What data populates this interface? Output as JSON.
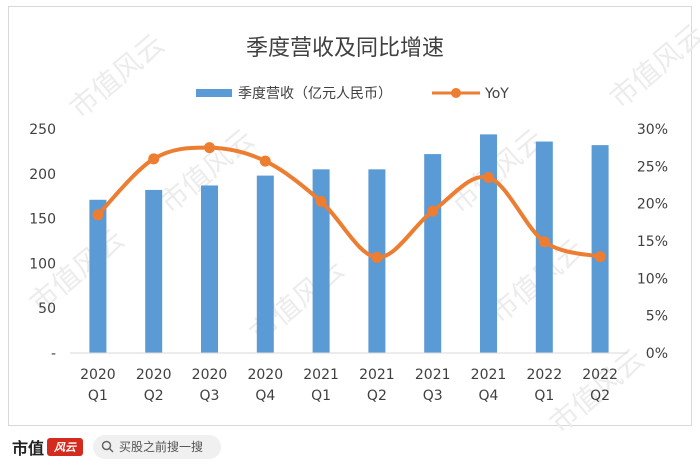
{
  "chart_data": {
    "type": "bar",
    "title": "季度营收及同比增速",
    "categories_line1": [
      "2020",
      "2020",
      "2020",
      "2020",
      "2021",
      "2021",
      "2021",
      "2021",
      "2022",
      "2022"
    ],
    "categories_line2": [
      "Q1",
      "Q2",
      "Q3",
      "Q4",
      "Q1",
      "Q2",
      "Q3",
      "Q4",
      "Q1",
      "Q2"
    ],
    "series": [
      {
        "name": "季度营收（亿元人民币）",
        "type": "bar",
        "axis": "left",
        "color": "#5b9bd5",
        "values": [
          171,
          182,
          187,
          198,
          205,
          205,
          222,
          244,
          236,
          232
        ]
      },
      {
        "name": "YoY",
        "type": "line",
        "axis": "right",
        "color": "#ed7d31",
        "values": [
          18.5,
          26.0,
          27.5,
          25.7,
          20.3,
          12.8,
          19.0,
          23.5,
          14.9,
          12.9
        ]
      }
    ],
    "y_left": {
      "range": [
        0,
        250
      ],
      "tick_values": [
        0,
        50,
        100,
        150,
        200,
        250
      ],
      "tick_labels": [
        "-",
        "50",
        "100",
        "150",
        "200",
        "250"
      ]
    },
    "y_right": {
      "range": [
        0,
        30
      ],
      "tick_values": [
        0,
        5,
        10,
        15,
        20,
        25,
        30
      ],
      "tick_labels": [
        "0%",
        "5%",
        "10%",
        "15%",
        "20%",
        "25%",
        "30%"
      ]
    },
    "grid": false,
    "legend_position": "top-center"
  },
  "watermark": {
    "text": "市值风云"
  },
  "footer": {
    "brand": "市值",
    "logo_text": "风云",
    "search_icon": "search-icon",
    "search_text": "买股之前搜一搜"
  }
}
